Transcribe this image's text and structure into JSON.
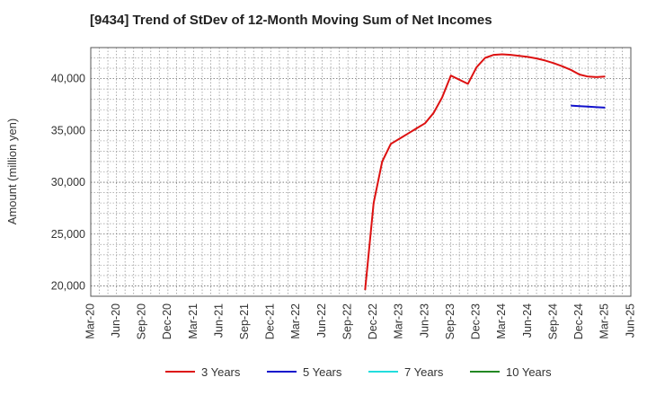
{
  "chart_data": {
    "type": "line",
    "title": "[9434]  Trend of StDev of 12-Month Moving Sum of Net Incomes",
    "xlabel": "",
    "ylabel": "Amount (million yen)",
    "ylim": [
      19000,
      43000
    ],
    "xlim": [
      "2020-03",
      "2025-06"
    ],
    "grid": true,
    "legend_position": "bottom",
    "x_ticks": [
      "Mar-20",
      "Jun-20",
      "Sep-20",
      "Dec-20",
      "Mar-21",
      "Jun-21",
      "Sep-21",
      "Dec-21",
      "Mar-22",
      "Jun-22",
      "Sep-22",
      "Dec-22",
      "Mar-23",
      "Jun-23",
      "Sep-23",
      "Dec-23",
      "Mar-24",
      "Jun-24",
      "Sep-24",
      "Dec-24",
      "Mar-25",
      "Jun-25"
    ],
    "y_ticks": [
      {
        "value": 20000,
        "label": "20,000"
      },
      {
        "value": 25000,
        "label": "25,000"
      },
      {
        "value": 30000,
        "label": "30,000"
      },
      {
        "value": 35000,
        "label": "35,000"
      },
      {
        "value": 40000,
        "label": "40,000"
      }
    ],
    "series": [
      {
        "name": "3 Years",
        "color": "#dd1111",
        "points": [
          [
            "2022-11",
            19600
          ],
          [
            "2022-12",
            28000
          ],
          [
            "2023-01",
            32000
          ],
          [
            "2023-02",
            33700
          ],
          [
            "2023-03",
            34200
          ],
          [
            "2023-04",
            34700
          ],
          [
            "2023-05",
            35200
          ],
          [
            "2023-06",
            35700
          ],
          [
            "2023-07",
            36700
          ],
          [
            "2023-08",
            38200
          ],
          [
            "2023-09",
            40300
          ],
          [
            "2023-10",
            39900
          ],
          [
            "2023-11",
            39500
          ],
          [
            "2023-12",
            41100
          ],
          [
            "2024-01",
            42000
          ],
          [
            "2024-02",
            42300
          ],
          [
            "2024-03",
            42350
          ],
          [
            "2024-04",
            42300
          ],
          [
            "2024-05",
            42200
          ],
          [
            "2024-06",
            42100
          ],
          [
            "2024-07",
            41950
          ],
          [
            "2024-08",
            41750
          ],
          [
            "2024-09",
            41500
          ],
          [
            "2024-10",
            41200
          ],
          [
            "2024-11",
            40850
          ],
          [
            "2024-12",
            40400
          ],
          [
            "2025-01",
            40200
          ],
          [
            "2025-02",
            40150
          ],
          [
            "2025-03",
            40200
          ]
        ]
      },
      {
        "name": "5 Years",
        "color": "#1111cc",
        "points": [
          [
            "2024-11",
            37400
          ],
          [
            "2024-12",
            37350
          ],
          [
            "2025-01",
            37300
          ],
          [
            "2025-02",
            37250
          ],
          [
            "2025-03",
            37200
          ]
        ]
      },
      {
        "name": "7 Years",
        "color": "#22dddd",
        "points": []
      },
      {
        "name": "10 Years",
        "color": "#228822",
        "points": []
      }
    ]
  }
}
